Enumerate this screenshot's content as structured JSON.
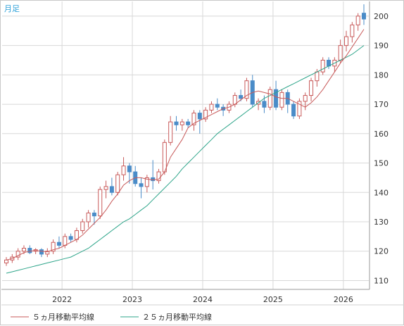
{
  "period_label": "月足",
  "legend": [
    {
      "label": "５ヵ月移動平均線",
      "color": "#c85a5a"
    },
    {
      "label": "２５ヵ月移動平均線",
      "color": "#2ea58a"
    }
  ],
  "colors": {
    "up": "#c85a5a",
    "down": "#4a8cc8",
    "ma5": "#c85a5a",
    "ma25": "#2ea58a",
    "grid": "#d8d8d8",
    "axis": "#999999"
  },
  "chart_data": {
    "type": "candlestick",
    "x_ticks": [
      "2022",
      "2023",
      "2024",
      "2025",
      "2026"
    ],
    "y_ticks": [
      110,
      120,
      130,
      140,
      150,
      160,
      170,
      180,
      190,
      200
    ],
    "ylim": [
      107,
      205
    ],
    "grid": true,
    "legend_position": "bottom",
    "series": [
      {
        "name": "OHLC",
        "candles": [
          {
            "o": 116,
            "h": 118,
            "l": 115,
            "c": 117
          },
          {
            "o": 117,
            "h": 119,
            "l": 116,
            "c": 118
          },
          {
            "o": 118,
            "h": 121,
            "l": 117,
            "c": 120
          },
          {
            "o": 120,
            "h": 122,
            "l": 119,
            "c": 121
          },
          {
            "o": 121,
            "h": 122,
            "l": 119,
            "c": 119.5
          },
          {
            "o": 120,
            "h": 121,
            "l": 119,
            "c": 120.5
          },
          {
            "o": 120.5,
            "h": 121,
            "l": 118,
            "c": 119
          },
          {
            "o": 119,
            "h": 121,
            "l": 118,
            "c": 120
          },
          {
            "o": 120,
            "h": 124,
            "l": 119,
            "c": 123
          },
          {
            "o": 123,
            "h": 125,
            "l": 121,
            "c": 122
          },
          {
            "o": 122,
            "h": 126,
            "l": 121,
            "c": 125
          },
          {
            "o": 125,
            "h": 126,
            "l": 123,
            "c": 124
          },
          {
            "o": 124,
            "h": 128,
            "l": 123,
            "c": 127
          },
          {
            "o": 127,
            "h": 131,
            "l": 126,
            "c": 130
          },
          {
            "o": 130,
            "h": 134,
            "l": 128,
            "c": 133
          },
          {
            "o": 133,
            "h": 134,
            "l": 129,
            "c": 132
          },
          {
            "o": 132,
            "h": 142,
            "l": 131,
            "c": 141
          },
          {
            "o": 141,
            "h": 144,
            "l": 138,
            "c": 142
          },
          {
            "o": 142,
            "h": 145,
            "l": 139,
            "c": 140
          },
          {
            "o": 140,
            "h": 147,
            "l": 139,
            "c": 146
          },
          {
            "o": 146,
            "h": 152,
            "l": 144,
            "c": 149
          },
          {
            "o": 149,
            "h": 150,
            "l": 143,
            "c": 147
          },
          {
            "o": 147,
            "h": 149,
            "l": 142,
            "c": 143
          },
          {
            "o": 143,
            "h": 145,
            "l": 138,
            "c": 142
          },
          {
            "o": 142,
            "h": 146,
            "l": 140,
            "c": 145
          },
          {
            "o": 145,
            "h": 151,
            "l": 141,
            "c": 144
          },
          {
            "o": 144,
            "h": 148,
            "l": 143,
            "c": 147
          },
          {
            "o": 147,
            "h": 158,
            "l": 146,
            "c": 157
          },
          {
            "o": 157,
            "h": 166,
            "l": 156,
            "c": 164
          },
          {
            "o": 164,
            "h": 166,
            "l": 161,
            "c": 163
          },
          {
            "o": 163,
            "h": 165,
            "l": 161,
            "c": 164
          },
          {
            "o": 164,
            "h": 165,
            "l": 162,
            "c": 163
          },
          {
            "o": 163,
            "h": 168,
            "l": 161,
            "c": 167
          },
          {
            "o": 167,
            "h": 168,
            "l": 160,
            "c": 165
          },
          {
            "o": 165,
            "h": 169,
            "l": 164,
            "c": 168
          },
          {
            "o": 168,
            "h": 171,
            "l": 167,
            "c": 170
          },
          {
            "o": 170,
            "h": 172,
            "l": 168,
            "c": 169
          },
          {
            "o": 169,
            "h": 170,
            "l": 166,
            "c": 168
          },
          {
            "o": 168,
            "h": 171,
            "l": 167,
            "c": 170
          },
          {
            "o": 170,
            "h": 174,
            "l": 169,
            "c": 173
          },
          {
            "o": 173,
            "h": 175,
            "l": 171,
            "c": 172
          },
          {
            "o": 172,
            "h": 179,
            "l": 171,
            "c": 178
          },
          {
            "o": 178,
            "h": 180,
            "l": 169,
            "c": 170
          },
          {
            "o": 170,
            "h": 172,
            "l": 168,
            "c": 171
          },
          {
            "o": 171,
            "h": 173,
            "l": 167,
            "c": 169
          },
          {
            "o": 169,
            "h": 176,
            "l": 168,
            "c": 175
          },
          {
            "o": 175,
            "h": 178,
            "l": 168,
            "c": 169
          },
          {
            "o": 169,
            "h": 175,
            "l": 168,
            "c": 174
          },
          {
            "o": 174,
            "h": 175,
            "l": 167,
            "c": 170
          },
          {
            "o": 170,
            "h": 171,
            "l": 165,
            "c": 166
          },
          {
            "o": 166,
            "h": 172,
            "l": 165,
            "c": 171
          },
          {
            "o": 171,
            "h": 174,
            "l": 168,
            "c": 173
          },
          {
            "o": 173,
            "h": 179,
            "l": 171,
            "c": 178
          },
          {
            "o": 178,
            "h": 182,
            "l": 176,
            "c": 181
          },
          {
            "o": 181,
            "h": 186,
            "l": 180,
            "c": 185
          },
          {
            "o": 185,
            "h": 186,
            "l": 182,
            "c": 183
          },
          {
            "o": 183,
            "h": 186,
            "l": 181,
            "c": 185
          },
          {
            "o": 185,
            "h": 192,
            "l": 184,
            "c": 190
          },
          {
            "o": 190,
            "h": 195,
            "l": 188,
            "c": 193
          },
          {
            "o": 193,
            "h": 198,
            "l": 191,
            "c": 197
          },
          {
            "o": 197,
            "h": 201,
            "l": 195,
            "c": 200
          },
          {
            "o": 201,
            "h": 204,
            "l": 197,
            "c": 199
          }
        ]
      },
      {
        "name": "５ヵ月移動平均線",
        "values": [
          117,
          117.5,
          118.5,
          119.5,
          120,
          120.2,
          120,
          119.8,
          120.5,
          121,
          122,
          123,
          124,
          125.5,
          127.5,
          129.5,
          131.5,
          134,
          137,
          139.5,
          142.5,
          144,
          145,
          145,
          144.5,
          144.3,
          144.5,
          147,
          152,
          155,
          158,
          162,
          163.5,
          164.5,
          165.5,
          166.5,
          167.5,
          168.5,
          169,
          170,
          171.5,
          173,
          174,
          174.5,
          174,
          173.5,
          172.5,
          172,
          172,
          171,
          170,
          169,
          170.5,
          172.5,
          175,
          178,
          181,
          184,
          186.5,
          189.5,
          192.5,
          195.5
        ]
      },
      {
        "name": "２５ヵ月移動平均線",
        "values": [
          112.5,
          113,
          113.5,
          114,
          114.5,
          115,
          115.5,
          116,
          116.5,
          117,
          117.5,
          118,
          119,
          120,
          121,
          122.5,
          124,
          125.5,
          127,
          128.5,
          130,
          131,
          132.5,
          134,
          135.5,
          137.5,
          139.5,
          141.5,
          143.5,
          145.5,
          148,
          150,
          152,
          154,
          156,
          158,
          160,
          161.5,
          163,
          164.5,
          166,
          167.5,
          169,
          170.5,
          172,
          173,
          174,
          175,
          176,
          177,
          178,
          179,
          180,
          181,
          182,
          183,
          184,
          185,
          186,
          187,
          188.5,
          190
        ]
      }
    ]
  }
}
